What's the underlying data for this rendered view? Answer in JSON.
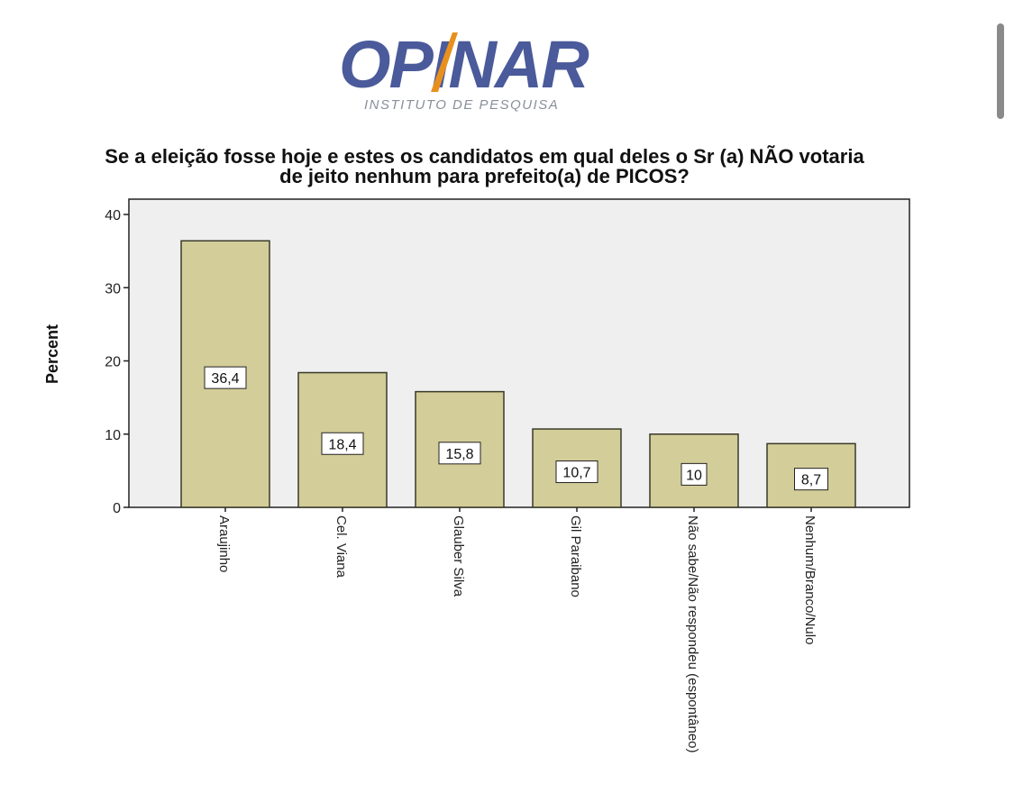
{
  "logo": {
    "word": "OPINAR",
    "subtitle": "INSTITUTO DE PESQUISA",
    "colors": {
      "word": "#4a5a9a",
      "accent": "#e8901e",
      "subtitle": "#8a8f9a"
    }
  },
  "chart_data": {
    "type": "bar",
    "title": "Se a eleição fosse hoje e estes os candidatos em qual deles o Sr (a) NÃO votaria de jeito nenhum para prefeito(a) de PICOS?",
    "title_lines": [
      "Se a eleição fosse hoje e estes os candidatos em qual deles o Sr (a) NÃO votaria",
      "de jeito nenhum para prefeito(a) de PICOS?"
    ],
    "ylabel": "Percent",
    "xlabel": "",
    "categories": [
      "Araujinho",
      "Cel. Viana",
      "Glauber Silva",
      "Gil Paraibano",
      "Não sabe/Não respondeu (espontâneo)",
      "Nenhum/Branco/Nulo"
    ],
    "values": [
      36.4,
      18.4,
      15.8,
      10.7,
      10,
      8.7
    ],
    "value_labels": [
      "36,4",
      "18,4",
      "15,8",
      "10,7",
      "10",
      "8,7"
    ],
    "ylim": [
      0,
      40
    ],
    "yticks": [
      0,
      10,
      20,
      30,
      40
    ],
    "grid": false,
    "colors": {
      "bar": "#d3cd99",
      "bar_stroke": "#3a3a2a",
      "plot_bg": "#efefef"
    }
  }
}
